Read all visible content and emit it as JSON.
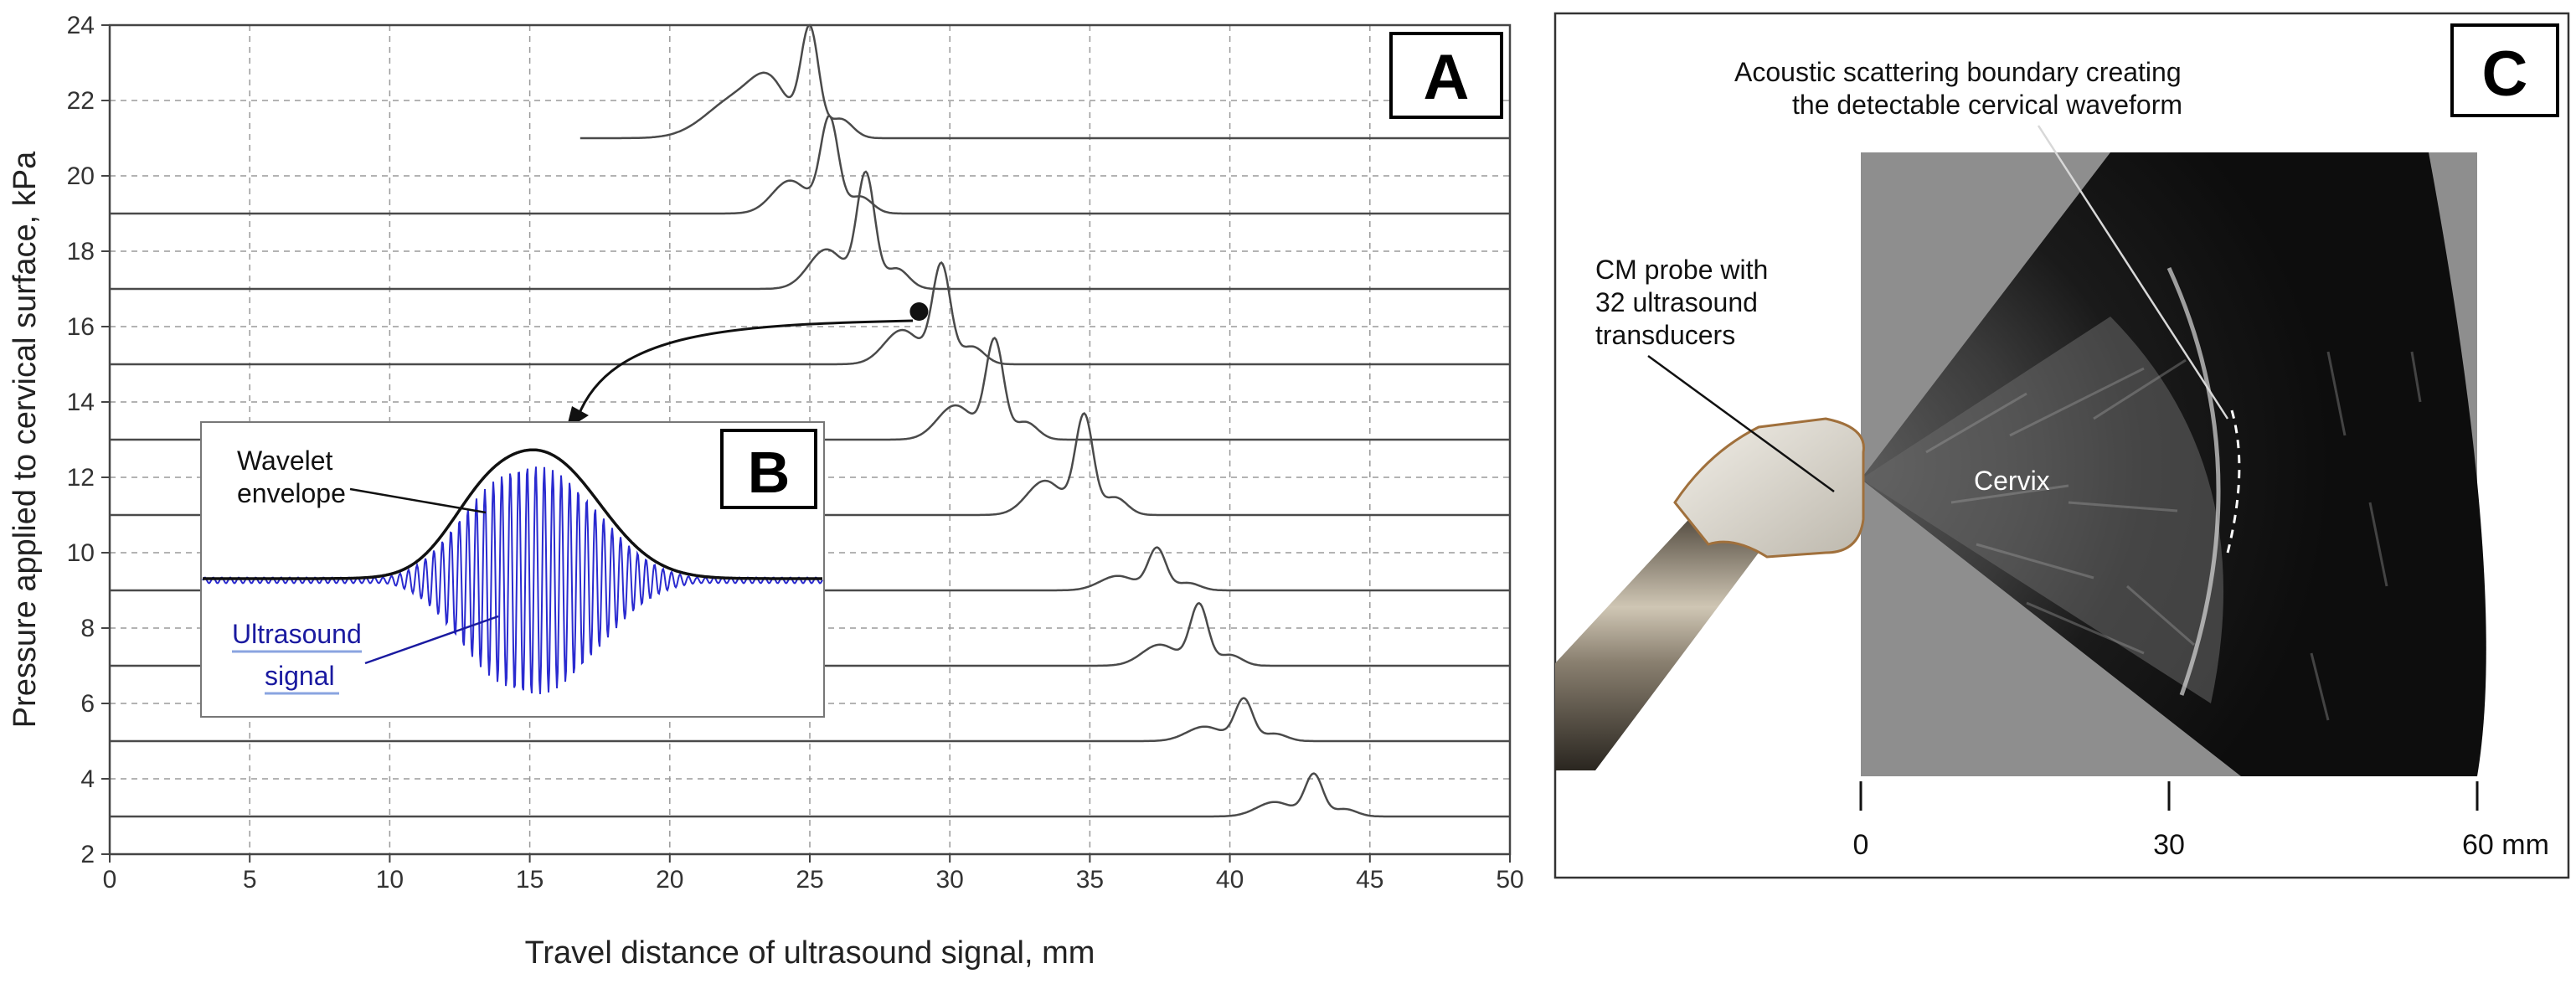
{
  "panel_a": {
    "letter": "A",
    "chart_data": {
      "type": "line",
      "xlabel": "Travel distance of ultrasound signal, mm",
      "ylabel": "Pressure applied to cervical surface, kPa",
      "xlim": [
        0,
        50
      ],
      "ylim": [
        2,
        24
      ],
      "xticks": [
        0,
        5,
        10,
        15,
        20,
        25,
        30,
        35,
        40,
        45,
        50
      ],
      "yticks": [
        2,
        4,
        6,
        8,
        10,
        12,
        14,
        16,
        18,
        20,
        22,
        24
      ],
      "grid": true,
      "series": [
        {
          "baseline": 21,
          "peak_x": 25.0,
          "peak_y": 23.8
        },
        {
          "baseline": 19,
          "peak_x": 25.7,
          "peak_y": 21.5
        },
        {
          "baseline": 17,
          "peak_x": 27.0,
          "peak_y": 20.0
        },
        {
          "baseline": 15,
          "peak_x": 29.7,
          "peak_y": 17.6
        },
        {
          "baseline": 13,
          "peak_x": 31.6,
          "peak_y": 15.6
        },
        {
          "baseline": 11,
          "peak_x": 34.8,
          "peak_y": 13.6
        },
        {
          "baseline": 9,
          "peak_x": 37.4,
          "peak_y": 10.1
        },
        {
          "baseline": 7,
          "peak_x": 38.9,
          "peak_y": 8.6
        },
        {
          "baseline": 5,
          "peak_x": 40.5,
          "peak_y": 6.1
        },
        {
          "baseline": 3,
          "peak_x": 43.0,
          "peak_y": 4.1
        }
      ],
      "marker": {
        "x": 28.9,
        "y": 16.4
      }
    }
  },
  "panel_b": {
    "letter": "B",
    "envelope_label_line1": "Wavelet",
    "envelope_label_line2": "envelope",
    "signal_label_line1": "Ultrasound",
    "signal_label_line2": "signal"
  },
  "panel_c": {
    "letter": "C",
    "boundary_label_line1": "Acoustic scattering boundary creating",
    "boundary_label_line2": "the detectable cervical waveform",
    "probe_label_line1": "CM probe with",
    "probe_label_line2": "32 ultrasound",
    "probe_label_line3": "transducers",
    "cervix_label": "Cervix",
    "scale_ticks": [
      "0",
      "30",
      "60 mm"
    ]
  },
  "colors": {
    "trace": "#4a4a4a",
    "signal": "#2a2ad0",
    "grid": "#9a9a9a",
    "ultrasound_bg": "#8e8e8e"
  }
}
